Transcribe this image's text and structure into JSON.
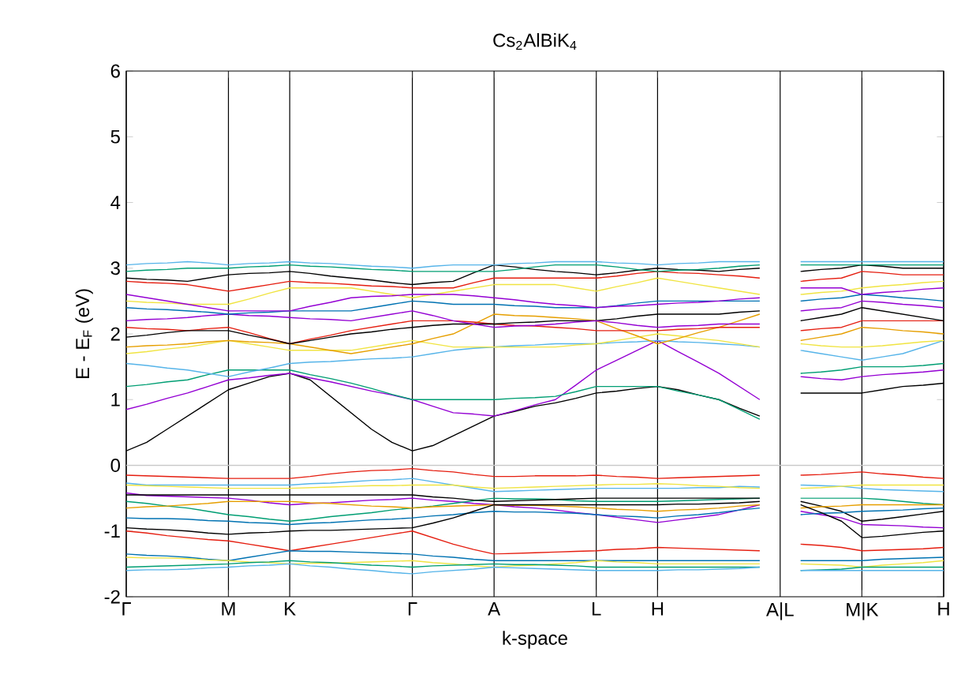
{
  "chart_data": {
    "type": "line",
    "title": "Cs$_{2}$AlBiK$_{4}$",
    "xlabel": "k-space",
    "ylabel": "E - E$_{F}$ (eV)",
    "categories": [
      "Γ",
      null,
      null,
      null,
      null,
      "M",
      null,
      null,
      "K",
      null,
      null,
      null,
      null,
      null,
      "Γ",
      null,
      null,
      null,
      "A",
      null,
      null,
      null,
      null,
      "L",
      null,
      null,
      "H",
      null,
      null,
      null,
      null,
      null,
      "A|L",
      null,
      null,
      null,
      "M|K",
      null,
      null,
      null,
      "H"
    ],
    "ylim": [
      -2,
      6
    ],
    "yticks": [
      -2,
      -1,
      0,
      1,
      2,
      3,
      4,
      5,
      6
    ],
    "grid": "x",
    "ref_lines": [
      {
        "axis": "y",
        "value": 0,
        "color": "#c8c8c8"
      }
    ],
    "series": [
      {
        "color": "#e51e10",
        "values": [
          -0.15,
          -0.16,
          -0.17,
          -0.18,
          -0.19,
          -0.2,
          -0.2,
          -0.2,
          -0.2,
          -0.17,
          -0.13,
          -0.1,
          -0.08,
          -0.07,
          -0.05,
          -0.08,
          -0.1,
          -0.14,
          -0.17,
          -0.17,
          -0.16,
          -0.16,
          -0.16,
          -0.15,
          -0.17,
          -0.18,
          -0.2,
          -0.19,
          -0.18,
          -0.17,
          -0.16,
          -0.15,
          null,
          -0.15,
          -0.14,
          -0.12,
          -0.1,
          -0.13,
          -0.15,
          -0.18,
          -0.2
        ]
      },
      {
        "color": "#56b4e9",
        "values": [
          -0.27,
          -0.3,
          -0.3,
          -0.3,
          -0.3,
          -0.3,
          -0.3,
          -0.3,
          -0.3,
          -0.28,
          -0.27,
          -0.25,
          -0.23,
          -0.22,
          -0.2,
          -0.25,
          -0.3,
          -0.35,
          -0.4,
          -0.39,
          -0.38,
          -0.37,
          -0.36,
          -0.35,
          -0.35,
          -0.35,
          -0.35,
          -0.35,
          -0.34,
          -0.34,
          -0.32,
          -0.33,
          null,
          -0.3,
          -0.31,
          -0.32,
          -0.35,
          -0.37,
          -0.38,
          -0.39,
          -0.4
        ]
      },
      {
        "color": "#f0e442",
        "values": [
          -0.3,
          -0.31,
          -0.32,
          -0.33,
          -0.34,
          -0.35,
          -0.35,
          -0.35,
          -0.35,
          -0.34,
          -0.33,
          -0.32,
          -0.31,
          -0.31,
          -0.3,
          -0.3,
          -0.3,
          -0.33,
          -0.35,
          -0.34,
          -0.33,
          -0.32,
          -0.31,
          -0.3,
          -0.29,
          -0.29,
          -0.28,
          -0.29,
          -0.31,
          -0.32,
          -0.34,
          -0.35,
          null,
          -0.35,
          -0.34,
          -0.32,
          -0.3,
          -0.3,
          -0.3,
          -0.3,
          -0.3
        ]
      },
      {
        "color": "#9400d3",
        "values": [
          -0.42,
          -0.46,
          -0.47,
          -0.48,
          -0.49,
          -0.5,
          -0.53,
          -0.57,
          -0.6,
          -0.58,
          -0.57,
          -0.55,
          -0.53,
          -0.52,
          -0.5,
          -0.53,
          -0.55,
          -0.58,
          -0.6,
          -0.63,
          -0.65,
          -0.68,
          -0.72,
          -0.75,
          -0.79,
          -0.83,
          -0.87,
          -0.83,
          -0.79,
          -0.75,
          -0.68,
          -0.6,
          null,
          -0.7,
          -0.75,
          -0.8,
          -0.9,
          -0.91,
          -0.92,
          -0.94,
          -0.95
        ]
      },
      {
        "color": "#009e73",
        "values": [
          -0.55,
          -0.58,
          -0.62,
          -0.65,
          -0.7,
          -0.75,
          -0.78,
          -0.82,
          -0.85,
          -0.82,
          -0.78,
          -0.75,
          -0.72,
          -0.68,
          -0.65,
          -0.62,
          -0.58,
          -0.54,
          -0.5,
          -0.51,
          -0.51,
          -0.52,
          -0.54,
          -0.55,
          -0.55,
          -0.55,
          -0.55,
          -0.54,
          -0.53,
          -0.52,
          -0.51,
          -0.5,
          null,
          -0.5,
          -0.5,
          -0.5,
          -0.5,
          -0.52,
          -0.55,
          -0.58,
          -0.6
        ]
      },
      {
        "color": "#000000",
        "values": [
          -0.45,
          -0.45,
          -0.45,
          -0.45,
          -0.45,
          -0.45,
          -0.45,
          -0.45,
          -0.45,
          -0.45,
          -0.45,
          -0.45,
          -0.45,
          -0.45,
          -0.45,
          -0.48,
          -0.5,
          -0.53,
          -0.55,
          -0.54,
          -0.53,
          -0.52,
          -0.51,
          -0.5,
          -0.5,
          -0.5,
          -0.5,
          -0.5,
          -0.5,
          -0.5,
          -0.5,
          -0.5,
          null,
          -0.55,
          -0.62,
          -0.7,
          -0.85,
          -0.82,
          -0.78,
          -0.74,
          -0.7
        ]
      },
      {
        "color": "#e69f00",
        "values": [
          -0.65,
          -0.63,
          -0.62,
          -0.6,
          -0.58,
          -0.55,
          -0.55,
          -0.55,
          -0.55,
          -0.57,
          -0.58,
          -0.6,
          -0.62,
          -0.63,
          -0.65,
          -0.63,
          -0.62,
          -0.61,
          -0.6,
          -0.61,
          -0.61,
          -0.62,
          -0.63,
          -0.65,
          -0.67,
          -0.68,
          -0.7,
          -0.68,
          -0.67,
          -0.65,
          -0.62,
          -0.6,
          null,
          -0.65,
          -0.63,
          -0.62,
          -0.6,
          -0.6,
          -0.6,
          -0.6,
          -0.6
        ]
      },
      {
        "color": "#0072b2",
        "values": [
          -0.8,
          -0.81,
          -0.81,
          -0.82,
          -0.84,
          -0.85,
          -0.87,
          -0.88,
          -0.9,
          -0.88,
          -0.87,
          -0.85,
          -0.83,
          -0.82,
          -0.8,
          -0.77,
          -0.75,
          -0.72,
          -0.7,
          -0.71,
          -0.71,
          -0.72,
          -0.73,
          -0.75,
          -0.77,
          -0.78,
          -0.8,
          -0.77,
          -0.75,
          -0.72,
          -0.68,
          -0.65,
          null,
          -0.75,
          -0.73,
          -0.72,
          -0.7,
          -0.69,
          -0.68,
          -0.66,
          -0.65
        ]
      },
      {
        "color": "#000000",
        "values": [
          -0.95,
          -0.97,
          -0.98,
          -1.0,
          -1.03,
          -1.05,
          -1.03,
          -1.02,
          -1.0,
          -0.99,
          -0.99,
          -0.98,
          -0.97,
          -0.96,
          -0.95,
          -0.88,
          -0.8,
          -0.7,
          -0.6,
          -0.6,
          -0.6,
          -0.6,
          -0.6,
          -0.6,
          -0.6,
          -0.6,
          -0.6,
          -0.59,
          -0.59,
          -0.58,
          -0.57,
          -0.55,
          null,
          -0.6,
          -0.72,
          -0.85,
          -1.1,
          -1.08,
          -1.05,
          -1.02,
          -1.0
        ]
      },
      {
        "color": "#e51e10",
        "values": [
          -1.0,
          -1.03,
          -1.07,
          -1.1,
          -1.13,
          -1.15,
          -1.2,
          -1.25,
          -1.3,
          -1.25,
          -1.2,
          -1.15,
          -1.1,
          -1.05,
          -1.0,
          -1.1,
          -1.2,
          -1.28,
          -1.35,
          -1.34,
          -1.33,
          -1.32,
          -1.31,
          -1.3,
          -1.28,
          -1.27,
          -1.25,
          -1.26,
          -1.27,
          -1.28,
          -1.29,
          -1.3,
          null,
          -1.2,
          -1.22,
          -1.25,
          -1.3,
          -1.29,
          -1.28,
          -1.27,
          -1.25
        ]
      },
      {
        "color": "#0072b2",
        "values": [
          -1.35,
          -1.37,
          -1.38,
          -1.4,
          -1.43,
          -1.45,
          -1.4,
          -1.35,
          -1.3,
          -1.31,
          -1.31,
          -1.32,
          -1.33,
          -1.34,
          -1.35,
          -1.38,
          -1.4,
          -1.43,
          -1.45,
          -1.45,
          -1.45,
          -1.45,
          -1.45,
          -1.45,
          -1.45,
          -1.45,
          -1.45,
          -1.45,
          -1.45,
          -1.45,
          -1.45,
          -1.45,
          null,
          -1.45,
          -1.45,
          -1.45,
          -1.45,
          -1.43,
          -1.42,
          -1.41,
          -1.4
        ]
      },
      {
        "color": "#f0e442",
        "values": [
          -1.4,
          -1.41,
          -1.41,
          -1.42,
          -1.44,
          -1.45,
          -1.47,
          -1.48,
          -1.5,
          -1.49,
          -1.49,
          -1.48,
          -1.47,
          -1.46,
          -1.45,
          -1.48,
          -1.5,
          -1.53,
          -1.55,
          -1.53,
          -1.52,
          -1.5,
          -1.48,
          -1.45,
          -1.47,
          -1.48,
          -1.5,
          -1.5,
          -1.5,
          -1.5,
          -1.5,
          -1.5,
          null,
          -1.5,
          -1.51,
          -1.52,
          -1.55,
          -1.52,
          -1.5,
          -1.48,
          -1.45
        ]
      },
      {
        "color": "#009e73",
        "values": [
          -1.55,
          -1.54,
          -1.53,
          -1.52,
          -1.51,
          -1.5,
          -1.48,
          -1.47,
          -1.45,
          -1.47,
          -1.48,
          -1.5,
          -1.52,
          -1.53,
          -1.55,
          -1.53,
          -1.52,
          -1.51,
          -1.5,
          -1.51,
          -1.51,
          -1.52,
          -1.53,
          -1.55,
          -1.55,
          -1.55,
          -1.55,
          -1.55,
          -1.55,
          -1.55,
          -1.55,
          -1.55,
          null,
          -1.6,
          -1.59,
          -1.58,
          -1.55,
          -1.55,
          -1.55,
          -1.55,
          -1.55
        ]
      },
      {
        "color": "#56b4e9",
        "values": [
          -1.6,
          -1.59,
          -1.59,
          -1.58,
          -1.56,
          -1.55,
          -1.53,
          -1.52,
          -1.5,
          -1.53,
          -1.55,
          -1.58,
          -1.6,
          -1.63,
          -1.65,
          -1.62,
          -1.6,
          -1.58,
          -1.55,
          -1.56,
          -1.57,
          -1.58,
          -1.59,
          -1.6,
          -1.6,
          -1.6,
          -1.6,
          -1.59,
          -1.59,
          -1.58,
          -1.57,
          -1.55,
          null,
          -1.6,
          -1.6,
          -1.6,
          -1.6,
          -1.6,
          -1.6,
          -1.6,
          -1.6
        ]
      },
      {
        "color": "#000000",
        "values": [
          0.22,
          0.35,
          0.55,
          0.75,
          0.95,
          1.15,
          1.25,
          1.35,
          1.4,
          1.3,
          1.05,
          0.8,
          0.55,
          0.35,
          0.22,
          0.3,
          0.45,
          0.6,
          0.75,
          0.82,
          0.9,
          0.95,
          1.02,
          1.1,
          1.13,
          1.17,
          1.2,
          1.15,
          1.07,
          1.0,
          0.87,
          0.75,
          null,
          1.1,
          1.1,
          1.1,
          1.1,
          1.15,
          1.2,
          1.22,
          1.25
        ]
      },
      {
        "color": "#9400d3",
        "values": [
          0.85,
          0.93,
          1.02,
          1.1,
          1.2,
          1.3,
          1.33,
          1.37,
          1.4,
          1.33,
          1.27,
          1.2,
          1.13,
          1.07,
          1.0,
          0.9,
          0.8,
          0.78,
          0.75,
          0.83,
          0.92,
          1.0,
          1.22,
          1.45,
          1.6,
          1.75,
          1.9,
          1.73,
          1.57,
          1.4,
          1.2,
          1.0,
          null,
          1.35,
          1.32,
          1.3,
          1.35,
          1.38,
          1.4,
          1.42,
          1.45
        ]
      },
      {
        "color": "#009e73",
        "values": [
          1.2,
          1.23,
          1.27,
          1.3,
          1.38,
          1.45,
          1.45,
          1.45,
          1.45,
          1.38,
          1.32,
          1.25,
          1.17,
          1.08,
          1.0,
          1.0,
          1.0,
          1.0,
          1.0,
          1.02,
          1.03,
          1.05,
          1.12,
          1.2,
          1.2,
          1.2,
          1.2,
          1.13,
          1.07,
          1.0,
          0.85,
          0.7,
          null,
          1.4,
          1.42,
          1.45,
          1.5,
          1.5,
          1.5,
          1.52,
          1.55
        ]
      },
      {
        "color": "#56b4e9",
        "values": [
          1.55,
          1.52,
          1.48,
          1.45,
          1.4,
          1.35,
          1.42,
          1.48,
          1.55,
          1.57,
          1.58,
          1.6,
          1.62,
          1.63,
          1.65,
          1.7,
          1.75,
          1.78,
          1.8,
          1.82,
          1.83,
          1.85,
          1.85,
          1.85,
          1.87,
          1.88,
          1.9,
          1.88,
          1.87,
          1.85,
          1.83,
          1.8,
          null,
          1.75,
          1.7,
          1.65,
          1.6,
          1.65,
          1.7,
          1.8,
          1.9
        ]
      },
      {
        "color": "#f0e442",
        "values": [
          1.7,
          1.73,
          1.77,
          1.8,
          1.85,
          1.9,
          1.85,
          1.8,
          1.75,
          1.75,
          1.75,
          1.75,
          1.8,
          1.85,
          1.9,
          1.85,
          1.8,
          1.8,
          1.8,
          1.8,
          1.8,
          1.8,
          1.83,
          1.85,
          1.9,
          1.95,
          2.0,
          1.97,
          1.93,
          1.9,
          1.85,
          1.8,
          null,
          1.85,
          1.82,
          1.8,
          1.8,
          1.82,
          1.85,
          1.88,
          1.9
        ]
      },
      {
        "color": "#e69f00",
        "values": [
          1.8,
          1.82,
          1.83,
          1.85,
          1.88,
          1.9,
          1.88,
          1.87,
          1.85,
          1.8,
          1.75,
          1.7,
          1.75,
          1.8,
          1.85,
          1.93,
          2.0,
          2.15,
          2.3,
          2.28,
          2.27,
          2.25,
          2.23,
          2.2,
          2.08,
          1.97,
          1.85,
          1.93,
          2.02,
          2.1,
          2.2,
          2.3,
          null,
          1.9,
          1.95,
          2.0,
          2.1,
          2.08,
          2.05,
          2.03,
          2.0
        ]
      },
      {
        "color": "#e51e10",
        "values": [
          2.1,
          2.08,
          2.07,
          2.05,
          2.08,
          2.1,
          2.02,
          1.93,
          1.85,
          1.92,
          1.98,
          2.05,
          2.1,
          2.15,
          2.2,
          2.2,
          2.2,
          2.18,
          2.15,
          2.13,
          2.12,
          2.1,
          2.08,
          2.05,
          2.05,
          2.05,
          2.05,
          2.07,
          2.08,
          2.1,
          2.1,
          2.1,
          null,
          2.05,
          2.08,
          2.1,
          2.2,
          2.2,
          2.2,
          2.2,
          2.2
        ]
      },
      {
        "color": "#000000",
        "values": [
          1.95,
          1.98,
          2.02,
          2.05,
          2.05,
          2.05,
          1.98,
          1.92,
          1.85,
          1.9,
          1.95,
          2.0,
          2.03,
          2.07,
          2.1,
          2.13,
          2.15,
          2.15,
          2.15,
          2.17,
          2.18,
          2.2,
          2.2,
          2.2,
          2.23,
          2.27,
          2.3,
          2.3,
          2.3,
          2.3,
          2.33,
          2.35,
          null,
          2.2,
          2.25,
          2.3,
          2.4,
          2.35,
          2.3,
          2.25,
          2.2
        ]
      },
      {
        "color": "#9400d3",
        "values": [
          2.2,
          2.22,
          2.23,
          2.25,
          2.28,
          2.3,
          2.28,
          2.27,
          2.25,
          2.23,
          2.22,
          2.2,
          2.25,
          2.3,
          2.35,
          2.28,
          2.2,
          2.15,
          2.1,
          2.12,
          2.13,
          2.15,
          2.18,
          2.2,
          2.17,
          2.13,
          2.1,
          2.12,
          2.13,
          2.15,
          2.15,
          2.15,
          null,
          2.35,
          2.38,
          2.4,
          2.5,
          2.48,
          2.45,
          2.43,
          2.4
        ]
      },
      {
        "color": "#0072b2",
        "values": [
          2.4,
          2.38,
          2.37,
          2.35,
          2.33,
          2.3,
          2.32,
          2.33,
          2.35,
          2.35,
          2.35,
          2.35,
          2.4,
          2.45,
          2.5,
          2.48,
          2.45,
          2.45,
          2.45,
          2.43,
          2.42,
          2.4,
          2.4,
          2.4,
          2.43,
          2.47,
          2.5,
          2.5,
          2.5,
          2.5,
          2.5,
          2.5,
          null,
          2.5,
          2.53,
          2.55,
          2.6,
          2.58,
          2.55,
          2.53,
          2.5
        ]
      },
      {
        "color": "#f0e442",
        "values": [
          2.5,
          2.48,
          2.47,
          2.45,
          2.45,
          2.45,
          2.53,
          2.62,
          2.7,
          2.7,
          2.7,
          2.7,
          2.65,
          2.6,
          2.55,
          2.6,
          2.65,
          2.7,
          2.75,
          2.75,
          2.75,
          2.75,
          2.7,
          2.65,
          2.72,
          2.78,
          2.85,
          2.8,
          2.75,
          2.7,
          2.65,
          2.6,
          null,
          2.6,
          2.63,
          2.65,
          2.7,
          2.73,
          2.75,
          2.78,
          2.8
        ]
      },
      {
        "color": "#9400d3",
        "values": [
          2.6,
          2.55,
          2.5,
          2.45,
          2.4,
          2.35,
          2.35,
          2.35,
          2.35,
          2.42,
          2.48,
          2.55,
          2.57,
          2.58,
          2.6,
          2.6,
          2.6,
          2.58,
          2.55,
          2.52,
          2.48,
          2.45,
          2.43,
          2.4,
          2.42,
          2.43,
          2.45,
          2.47,
          2.48,
          2.5,
          2.53,
          2.55,
          null,
          2.7,
          2.7,
          2.7,
          2.6,
          2.63,
          2.65,
          2.68,
          2.7
        ]
      },
      {
        "color": "#e51e10",
        "values": [
          2.8,
          2.78,
          2.77,
          2.75,
          2.7,
          2.65,
          2.7,
          2.75,
          2.8,
          2.78,
          2.77,
          2.75,
          2.73,
          2.72,
          2.7,
          2.7,
          2.7,
          2.78,
          2.85,
          2.85,
          2.85,
          2.85,
          2.85,
          2.85,
          2.88,
          2.92,
          2.95,
          2.93,
          2.92,
          2.9,
          2.88,
          2.85,
          null,
          2.8,
          2.83,
          2.85,
          2.95,
          2.93,
          2.9,
          2.9,
          2.9
        ]
      },
      {
        "color": "#000000",
        "values": [
          2.85,
          2.83,
          2.82,
          2.8,
          2.85,
          2.9,
          2.92,
          2.93,
          2.95,
          2.92,
          2.88,
          2.85,
          2.82,
          2.78,
          2.75,
          2.78,
          2.8,
          2.93,
          3.05,
          3.02,
          2.98,
          2.95,
          2.93,
          2.9,
          2.93,
          2.97,
          3.0,
          2.98,
          2.97,
          2.95,
          2.98,
          3.0,
          null,
          2.95,
          2.98,
          3.0,
          3.05,
          3.03,
          3.0,
          3.0,
          3.0
        ]
      },
      {
        "color": "#009e73",
        "values": [
          2.95,
          2.97,
          2.98,
          3.0,
          3.0,
          3.0,
          3.02,
          3.03,
          3.05,
          3.03,
          3.02,
          3.0,
          2.98,
          2.97,
          2.95,
          2.95,
          2.95,
          2.95,
          2.95,
          2.98,
          3.02,
          3.05,
          3.05,
          3.05,
          3.02,
          2.98,
          2.95,
          2.97,
          2.98,
          3.0,
          3.03,
          3.05,
          null,
          3.05,
          3.05,
          3.05,
          3.05,
          3.05,
          3.05,
          3.05,
          3.05
        ]
      },
      {
        "color": "#56b4e9",
        "values": [
          3.05,
          3.07,
          3.08,
          3.1,
          3.08,
          3.05,
          3.07,
          3.08,
          3.1,
          3.08,
          3.07,
          3.05,
          3.03,
          3.02,
          3.0,
          3.03,
          3.05,
          3.05,
          3.05,
          3.07,
          3.08,
          3.1,
          3.1,
          3.1,
          3.08,
          3.07,
          3.05,
          3.07,
          3.08,
          3.1,
          3.1,
          3.1,
          null,
          3.1,
          3.1,
          3.1,
          3.1,
          3.1,
          3.1,
          3.1,
          3.1
        ]
      }
    ]
  }
}
